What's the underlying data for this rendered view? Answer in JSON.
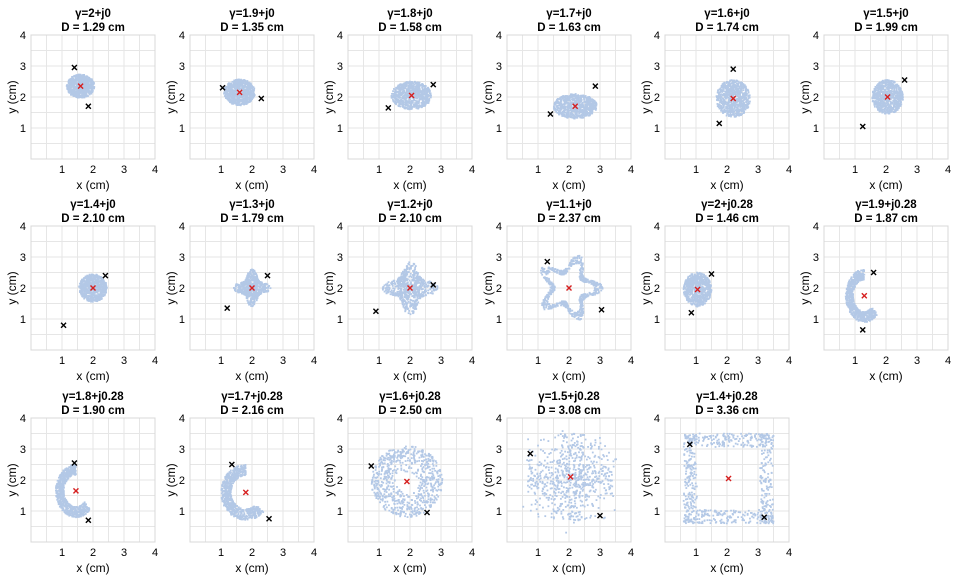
{
  "figure": {
    "xlabel": "x (cm)",
    "ylabel": "y (cm)",
    "ticks": [
      "1",
      "2",
      "3",
      "4"
    ]
  },
  "chart_data": [
    {
      "type": "scatter",
      "gamma": "γ=2+j0",
      "dlabel": "D = 1.29 cm",
      "shape": "blob",
      "center": [
        1.6,
        2.35
      ],
      "spread": [
        0.45,
        0.38
      ],
      "markers": [
        [
          1.4,
          2.95
        ],
        [
          1.85,
          1.7
        ]
      ],
      "xlim": [
        0,
        4
      ],
      "ylim": [
        0,
        4
      ]
    },
    {
      "type": "scatter",
      "gamma": "γ=1.9+j0",
      "dlabel": "D = 1.35 cm",
      "shape": "blob",
      "center": [
        1.6,
        2.15
      ],
      "spread": [
        0.5,
        0.42
      ],
      "markers": [
        [
          1.05,
          2.3
        ],
        [
          2.3,
          1.95
        ]
      ],
      "xlim": [
        0,
        4
      ],
      "ylim": [
        0,
        4
      ]
    },
    {
      "type": "scatter",
      "gamma": "γ=1.8+j0",
      "dlabel": "D = 1.58 cm",
      "shape": "blob",
      "center": [
        2.05,
        2.05
      ],
      "spread": [
        0.65,
        0.45
      ],
      "markers": [
        [
          1.3,
          1.65
        ],
        [
          2.75,
          2.4
        ]
      ],
      "xlim": [
        0,
        4
      ],
      "ylim": [
        0,
        4
      ]
    },
    {
      "type": "scatter",
      "gamma": "γ=1.7+j0",
      "dlabel": "D = 1.63 cm",
      "shape": "blob",
      "center": [
        2.2,
        1.7
      ],
      "spread": [
        0.7,
        0.4
      ],
      "markers": [
        [
          1.4,
          1.45
        ],
        [
          2.85,
          2.35
        ]
      ],
      "xlim": [
        0,
        4
      ],
      "ylim": [
        0,
        4
      ]
    },
    {
      "type": "scatter",
      "gamma": "γ=1.6+j0",
      "dlabel": "D = 1.74 cm",
      "shape": "blob",
      "center": [
        2.2,
        1.95
      ],
      "spread": [
        0.55,
        0.6
      ],
      "markers": [
        [
          2.2,
          2.9
        ],
        [
          1.75,
          1.15
        ]
      ],
      "xlim": [
        0,
        4
      ],
      "ylim": [
        0,
        4
      ]
    },
    {
      "type": "scatter",
      "gamma": "γ=1.5+j0",
      "dlabel": "D = 1.99 cm",
      "shape": "blob",
      "center": [
        2.05,
        2.0
      ],
      "spread": [
        0.5,
        0.55
      ],
      "markers": [
        [
          2.6,
          2.55
        ],
        [
          1.25,
          1.05
        ]
      ],
      "xlim": [
        0,
        4
      ],
      "ylim": [
        0,
        4
      ]
    },
    {
      "type": "scatter",
      "gamma": "γ=1.4+j0",
      "dlabel": "D = 2.10 cm",
      "shape": "blob",
      "center": [
        2.0,
        2.0
      ],
      "spread": [
        0.45,
        0.45
      ],
      "markers": [
        [
          2.4,
          2.4
        ],
        [
          1.05,
          0.8
        ]
      ],
      "xlim": [
        0,
        4
      ],
      "ylim": [
        0,
        4
      ]
    },
    {
      "type": "scatter",
      "gamma": "γ=1.3+j0",
      "dlabel": "D = 1.79 cm",
      "shape": "star4",
      "center": [
        2.0,
        2.0
      ],
      "spread": [
        0.6,
        0.6
      ],
      "markers": [
        [
          2.5,
          2.4
        ],
        [
          1.2,
          1.35
        ]
      ],
      "xlim": [
        0,
        4
      ],
      "ylim": [
        0,
        4
      ]
    },
    {
      "type": "scatter",
      "gamma": "γ=1.2+j0",
      "dlabel": "D = 2.10 cm",
      "shape": "star4",
      "center": [
        2.0,
        2.0
      ],
      "spread": [
        0.9,
        0.85
      ],
      "markers": [
        [
          2.75,
          2.1
        ],
        [
          0.9,
          1.25
        ]
      ],
      "xlim": [
        0,
        4
      ],
      "ylim": [
        0,
        4
      ]
    },
    {
      "type": "scatter",
      "gamma": "γ=1.1+j0",
      "dlabel": "D = 2.37 cm",
      "shape": "star5",
      "center": [
        2.0,
        2.0
      ],
      "spread": [
        1.1,
        1.1
      ],
      "markers": [
        [
          1.3,
          2.85
        ],
        [
          3.05,
          1.3
        ]
      ],
      "xlim": [
        0,
        4
      ],
      "ylim": [
        0,
        4
      ]
    },
    {
      "type": "scatter",
      "gamma": "γ=2+j0.28",
      "dlabel": "D = 1.46 cm",
      "shape": "blob",
      "center": [
        1.05,
        1.95
      ],
      "spread": [
        0.45,
        0.55
      ],
      "markers": [
        [
          1.5,
          2.45
        ],
        [
          0.85,
          1.2
        ]
      ],
      "xlim": [
        0,
        4
      ],
      "ylim": [
        0,
        4
      ]
    },
    {
      "type": "scatter",
      "gamma": "γ=1.9+j0.28",
      "dlabel": "D = 1.87 cm",
      "shape": "crescent",
      "center": [
        1.3,
        1.75
      ],
      "spread": [
        0.6,
        0.95
      ],
      "markers": [
        [
          1.6,
          2.5
        ],
        [
          1.25,
          0.65
        ]
      ],
      "xlim": [
        0,
        4
      ],
      "ylim": [
        0,
        4
      ]
    },
    {
      "type": "scatter",
      "gamma": "γ=1.8+j0.28",
      "dlabel": "D = 1.90 cm",
      "shape": "crescent",
      "center": [
        1.45,
        1.65
      ],
      "spread": [
        0.65,
        0.95
      ],
      "markers": [
        [
          1.4,
          2.55
        ],
        [
          1.85,
          0.7
        ]
      ],
      "xlim": [
        0,
        4
      ],
      "ylim": [
        0,
        4
      ]
    },
    {
      "type": "scatter",
      "gamma": "γ=1.7+j0.28",
      "dlabel": "D = 2.16 cm",
      "shape": "crescent",
      "center": [
        1.8,
        1.6
      ],
      "spread": [
        0.8,
        1.0
      ],
      "markers": [
        [
          1.35,
          2.5
        ],
        [
          2.55,
          0.75
        ]
      ],
      "xlim": [
        0,
        4
      ],
      "ylim": [
        0,
        4
      ]
    },
    {
      "type": "scatter",
      "gamma": "γ=1.6+j0.28",
      "dlabel": "D = 2.50 cm",
      "shape": "ring",
      "center": [
        1.9,
        1.95
      ],
      "spread": [
        1.15,
        1.15
      ],
      "markers": [
        [
          0.75,
          2.45
        ],
        [
          2.55,
          0.95
        ]
      ],
      "xlim": [
        0,
        4
      ],
      "ylim": [
        0,
        4
      ]
    },
    {
      "type": "scatter",
      "gamma": "γ=1.5+j0.28",
      "dlabel": "D = 3.08 cm",
      "shape": "cross",
      "center": [
        2.05,
        2.1
      ],
      "spread": [
        1.4,
        1.4
      ],
      "markers": [
        [
          0.75,
          2.85
        ],
        [
          3.0,
          0.85
        ]
      ],
      "xlim": [
        0,
        4
      ],
      "ylim": [
        0,
        4
      ]
    },
    {
      "type": "scatter",
      "gamma": "γ=1.4+j0.28",
      "dlabel": "D = 3.36 cm",
      "shape": "square",
      "center": [
        2.05,
        2.05
      ],
      "spread": [
        1.45,
        1.45
      ],
      "markers": [
        [
          0.8,
          3.15
        ],
        [
          3.2,
          0.8
        ]
      ],
      "xlim": [
        0,
        4
      ],
      "ylim": [
        0,
        4
      ]
    }
  ],
  "colors": {
    "scatter": "#b3c8e6",
    "center_marker": "#d62020",
    "endpoint_marker": "#000000"
  }
}
